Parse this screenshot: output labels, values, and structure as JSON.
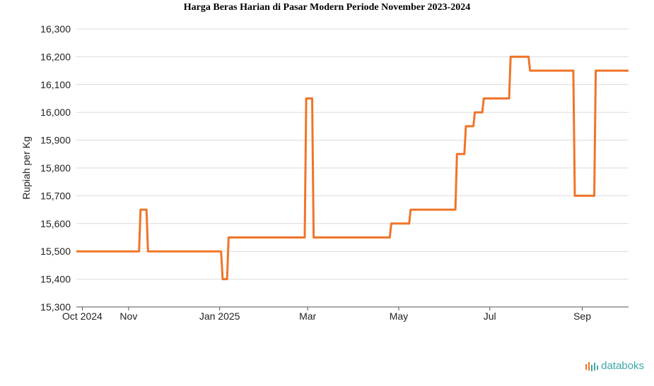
{
  "chart_data": {
    "type": "line",
    "title": "Harga Beras Harian di Pasar Modern Periode November 2023-2024",
    "xlabel": "",
    "ylabel": "Rupiah per Kg",
    "ylim": [
      15300,
      16300
    ],
    "yticks": [
      "15,300",
      "15,400",
      "15,500",
      "15,600",
      "15,700",
      "15,800",
      "15,900",
      "16,000",
      "16,100",
      "16,200",
      "16,300"
    ],
    "xlim": [
      "2024-09-27",
      "2025-10-02"
    ],
    "xticks": [
      {
        "date": "2024-10-01",
        "label": "Oct 2024"
      },
      {
        "date": "2024-11-01",
        "label": "Nov"
      },
      {
        "date": "2025-01-01",
        "label": "Jan 2025"
      },
      {
        "date": "2025-03-01",
        "label": "Mar"
      },
      {
        "date": "2025-05-01",
        "label": "May"
      },
      {
        "date": "2025-07-01",
        "label": "Jul"
      },
      {
        "date": "2025-09-01",
        "label": "Sep"
      }
    ],
    "grid": true,
    "series": [
      {
        "color": "#f07428",
        "x": [
          "2024-09-27",
          "2024-11-08",
          "2024-11-09",
          "2024-11-13",
          "2024-11-14",
          "2025-01-02",
          "2025-01-03",
          "2025-01-06",
          "2025-01-07",
          "2025-02-27",
          "2025-02-28",
          "2025-03-04",
          "2025-03-05",
          "2025-04-25",
          "2025-04-26",
          "2025-05-08",
          "2025-05-09",
          "2025-06-08",
          "2025-06-09",
          "2025-06-14",
          "2025-06-15",
          "2025-06-20",
          "2025-06-21",
          "2025-06-26",
          "2025-06-27",
          "2025-07-14",
          "2025-07-15",
          "2025-07-27",
          "2025-07-28",
          "2025-08-26",
          "2025-08-27",
          "2025-09-09",
          "2025-09-10",
          "2025-10-02"
        ],
        "values": [
          15500,
          15500,
          15650,
          15650,
          15500,
          15500,
          15400,
          15400,
          15550,
          15550,
          16050,
          16050,
          15550,
          15550,
          15600,
          15600,
          15650,
          15650,
          15850,
          15850,
          15950,
          15950,
          16000,
          16000,
          16050,
          16050,
          16200,
          16200,
          16150,
          16150,
          15700,
          15700,
          16150,
          16150
        ]
      }
    ]
  },
  "brand": {
    "name": "databoks",
    "color": "#3aa9a5",
    "accent": "#f07428",
    "icon": "bar-pulse-icon"
  }
}
